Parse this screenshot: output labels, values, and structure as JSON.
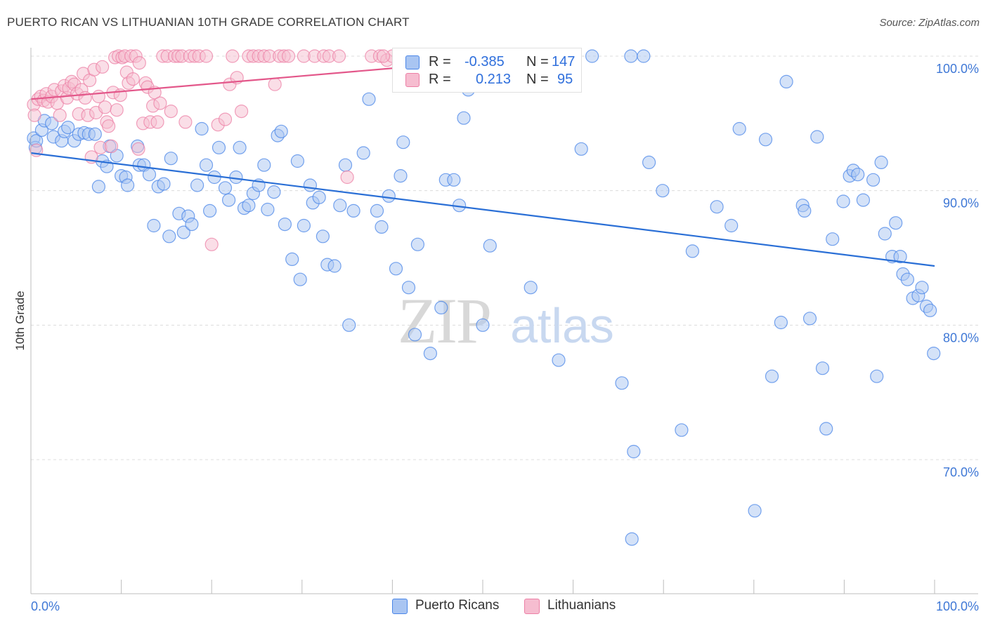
{
  "header": {
    "title": "PUERTO RICAN VS LITHUANIAN 10TH GRADE CORRELATION CHART",
    "source": "Source: ZipAtlas.com"
  },
  "watermark": {
    "zip": "ZIP",
    "atlas": "atlas"
  },
  "colors": {
    "blue": "#4a86e8",
    "blue_fill": "#a9c5f2",
    "blue_line": "#2a6fd6",
    "pink": "#ec80a6",
    "pink_fill": "#f6bdd0",
    "pink_line": "#e3578a",
    "tick_label": "#3f78d6",
    "grid": "#dcdcdc"
  },
  "legend": {
    "rows": [
      {
        "r_label": "R =",
        "r_value": "-0.385",
        "n_label": "N =",
        "n_value": "147"
      },
      {
        "r_label": "R =",
        "r_value": "0.213",
        "n_label": "N =",
        "n_value": "95"
      }
    ]
  },
  "bottom_legend": {
    "series1": "Puerto Ricans",
    "series2": "Lithuanians"
  },
  "chart_data": {
    "type": "scatter",
    "title": "PUERTO RICAN VS LITHUANIAN 10TH GRADE CORRELATION CHART",
    "xlabel": "",
    "ylabel": "10th Grade",
    "xlim": [
      0,
      100
    ],
    "ylim": [
      60,
      100
    ],
    "x_tick_labels": [
      "0.0%",
      "100.0%"
    ],
    "y_ticks": [
      70,
      80,
      90,
      100
    ],
    "y_tick_labels": [
      "70.0%",
      "80.0%",
      "90.0%",
      "100.0%"
    ],
    "grid": true,
    "legend_position": "top-center",
    "series": [
      {
        "name": "Puerto Ricans",
        "color": "#4a86e8",
        "r": -0.385,
        "n": 147,
        "trend": {
          "x": [
            0,
            100
          ],
          "y": [
            92.8,
            84.4
          ]
        },
        "points": [
          [
            0.3,
            93.9
          ],
          [
            0.5,
            93.2
          ],
          [
            0.6,
            93.7
          ],
          [
            1.2,
            94.5
          ],
          [
            1.5,
            95.2
          ],
          [
            2.3,
            95.0
          ],
          [
            2.5,
            94.0
          ],
          [
            3.4,
            93.7
          ],
          [
            3.7,
            94.4
          ],
          [
            4.1,
            94.7
          ],
          [
            4.8,
            93.7
          ],
          [
            5.3,
            94.2
          ],
          [
            5.9,
            94.3
          ],
          [
            6.4,
            94.2
          ],
          [
            7.1,
            94.2
          ],
          [
            7.5,
            90.3
          ],
          [
            7.9,
            92.2
          ],
          [
            8.4,
            91.8
          ],
          [
            8.7,
            93.3
          ],
          [
            9.5,
            92.6
          ],
          [
            10.0,
            91.1
          ],
          [
            10.5,
            91.0
          ],
          [
            10.7,
            90.4
          ],
          [
            11.8,
            93.3
          ],
          [
            12.0,
            91.9
          ],
          [
            12.5,
            91.9
          ],
          [
            13.1,
            91.2
          ],
          [
            13.6,
            87.4
          ],
          [
            14.1,
            90.3
          ],
          [
            14.7,
            90.5
          ],
          [
            15.3,
            86.6
          ],
          [
            15.5,
            92.4
          ],
          [
            16.4,
            88.3
          ],
          [
            16.9,
            86.9
          ],
          [
            17.4,
            88.1
          ],
          [
            17.8,
            87.5
          ],
          [
            18.4,
            90.4
          ],
          [
            18.9,
            94.6
          ],
          [
            19.4,
            91.9
          ],
          [
            19.8,
            88.5
          ],
          [
            20.3,
            91.0
          ],
          [
            20.8,
            93.2
          ],
          [
            21.5,
            90.2
          ],
          [
            21.9,
            89.3
          ],
          [
            22.7,
            91.0
          ],
          [
            23.1,
            93.2
          ],
          [
            23.6,
            88.7
          ],
          [
            24.1,
            88.9
          ],
          [
            24.6,
            89.8
          ],
          [
            25.2,
            90.4
          ],
          [
            25.8,
            91.9
          ],
          [
            26.2,
            88.6
          ],
          [
            26.9,
            89.9
          ],
          [
            27.3,
            94.1
          ],
          [
            27.7,
            94.4
          ],
          [
            28.1,
            87.5
          ],
          [
            28.9,
            84.9
          ],
          [
            29.5,
            92.2
          ],
          [
            29.8,
            83.4
          ],
          [
            30.2,
            87.4
          ],
          [
            30.9,
            90.4
          ],
          [
            31.2,
            89.1
          ],
          [
            31.9,
            89.5
          ],
          [
            32.3,
            86.6
          ],
          [
            32.8,
            84.5
          ],
          [
            33.6,
            84.4
          ],
          [
            34.2,
            88.9
          ],
          [
            34.8,
            91.9
          ],
          [
            35.2,
            80.0
          ],
          [
            35.7,
            88.5
          ],
          [
            36.8,
            92.8
          ],
          [
            37.4,
            96.8
          ],
          [
            38.3,
            88.5
          ],
          [
            38.8,
            87.3
          ],
          [
            39.6,
            89.6
          ],
          [
            40.4,
            84.2
          ],
          [
            40.9,
            91.1
          ],
          [
            41.2,
            93.6
          ],
          [
            41.8,
            82.8
          ],
          [
            42.5,
            79.3
          ],
          [
            42.8,
            86.0
          ],
          [
            44.2,
            77.9
          ],
          [
            45.4,
            81.3
          ],
          [
            45.9,
            90.8
          ],
          [
            46.8,
            90.8
          ],
          [
            47.4,
            88.9
          ],
          [
            47.9,
            95.4
          ],
          [
            48.4,
            97.5
          ],
          [
            49.1,
            100.0
          ],
          [
            50.0,
            80.0
          ],
          [
            50.8,
            85.9
          ],
          [
            52.0,
            99.9
          ],
          [
            53.0,
            100.0
          ],
          [
            54.0,
            100.0
          ],
          [
            55.3,
            82.8
          ],
          [
            55.8,
            100.0
          ],
          [
            58.4,
            77.4
          ],
          [
            59.0,
            100.0
          ],
          [
            59.7,
            100.0
          ],
          [
            60.9,
            93.1
          ],
          [
            62.1,
            100.0
          ],
          [
            65.4,
            75.7
          ],
          [
            66.4,
            100.0
          ],
          [
            66.5,
            64.1
          ],
          [
            66.7,
            70.6
          ],
          [
            67.8,
            100.0
          ],
          [
            68.4,
            92.1
          ],
          [
            69.9,
            90.0
          ],
          [
            72.0,
            72.2
          ],
          [
            73.2,
            85.5
          ],
          [
            75.9,
            88.8
          ],
          [
            77.5,
            87.4
          ],
          [
            78.4,
            94.6
          ],
          [
            80.1,
            66.2
          ],
          [
            81.3,
            93.8
          ],
          [
            82.0,
            76.2
          ],
          [
            83.0,
            80.2
          ],
          [
            83.6,
            98.1
          ],
          [
            85.4,
            88.9
          ],
          [
            85.6,
            88.5
          ],
          [
            86.2,
            80.5
          ],
          [
            87.0,
            94.0
          ],
          [
            87.6,
            76.8
          ],
          [
            88.0,
            72.3
          ],
          [
            88.7,
            86.4
          ],
          [
            89.9,
            89.2
          ],
          [
            90.6,
            91.1
          ],
          [
            91.0,
            91.5
          ],
          [
            91.5,
            91.2
          ],
          [
            92.1,
            89.3
          ],
          [
            93.2,
            90.8
          ],
          [
            93.6,
            76.2
          ],
          [
            94.1,
            92.1
          ],
          [
            94.5,
            86.8
          ],
          [
            95.3,
            85.1
          ],
          [
            95.7,
            87.6
          ],
          [
            96.2,
            85.1
          ],
          [
            96.5,
            83.8
          ],
          [
            97.0,
            83.4
          ],
          [
            97.6,
            82.0
          ],
          [
            98.2,
            82.2
          ],
          [
            98.6,
            82.8
          ],
          [
            99.1,
            81.4
          ],
          [
            99.5,
            81.1
          ],
          [
            99.9,
            77.9
          ]
        ]
      },
      {
        "name": "Lithuanians",
        "color": "#ec80a6",
        "r": 0.213,
        "n": 95,
        "trend": {
          "x": [
            0,
            40
          ],
          "y": [
            96.8,
            99.1
          ]
        },
        "points": [
          [
            0.3,
            96.4
          ],
          [
            0.4,
            95.6
          ],
          [
            0.6,
            93.0
          ],
          [
            0.8,
            96.8
          ],
          [
            1.1,
            97.0
          ],
          [
            1.4,
            96.7
          ],
          [
            1.7,
            97.2
          ],
          [
            1.9,
            96.6
          ],
          [
            2.3,
            97.0
          ],
          [
            2.6,
            97.5
          ],
          [
            2.9,
            96.5
          ],
          [
            3.2,
            95.6
          ],
          [
            3.4,
            97.4
          ],
          [
            3.7,
            97.8
          ],
          [
            4.0,
            96.9
          ],
          [
            4.2,
            97.6
          ],
          [
            4.5,
            98.1
          ],
          [
            4.8,
            97.9
          ],
          [
            5.1,
            97.2
          ],
          [
            5.3,
            95.7
          ],
          [
            5.6,
            97.5
          ],
          [
            5.8,
            98.7
          ],
          [
            6.0,
            96.9
          ],
          [
            6.3,
            95.6
          ],
          [
            6.5,
            98.2
          ],
          [
            6.7,
            92.5
          ],
          [
            7.0,
            99.0
          ],
          [
            7.2,
            95.8
          ],
          [
            7.5,
            97.0
          ],
          [
            7.7,
            93.2
          ],
          [
            7.9,
            99.2
          ],
          [
            8.2,
            96.2
          ],
          [
            8.4,
            95.1
          ],
          [
            8.6,
            94.8
          ],
          [
            8.9,
            93.3
          ],
          [
            9.1,
            97.3
          ],
          [
            9.3,
            99.9
          ],
          [
            9.5,
            96.0
          ],
          [
            9.7,
            100.0
          ],
          [
            9.9,
            97.1
          ],
          [
            10.1,
            99.9
          ],
          [
            10.4,
            100.0
          ],
          [
            10.6,
            98.8
          ],
          [
            10.8,
            98.0
          ],
          [
            11.1,
            100.0
          ],
          [
            11.3,
            98.3
          ],
          [
            11.6,
            100.0
          ],
          [
            11.9,
            93.1
          ],
          [
            12.0,
            99.5
          ],
          [
            12.4,
            95.0
          ],
          [
            12.7,
            98.0
          ],
          [
            12.9,
            97.7
          ],
          [
            13.2,
            95.1
          ],
          [
            13.5,
            96.3
          ],
          [
            13.7,
            97.3
          ],
          [
            14.0,
            95.1
          ],
          [
            14.3,
            96.5
          ],
          [
            14.6,
            100.0
          ],
          [
            15.1,
            100.0
          ],
          [
            15.5,
            95.9
          ],
          [
            15.9,
            100.0
          ],
          [
            16.3,
            100.0
          ],
          [
            16.7,
            100.0
          ],
          [
            17.1,
            95.1
          ],
          [
            17.6,
            100.0
          ],
          [
            18.1,
            100.0
          ],
          [
            18.6,
            100.0
          ],
          [
            19.4,
            100.0
          ],
          [
            20.0,
            86.0
          ],
          [
            20.7,
            94.9
          ],
          [
            21.5,
            95.3
          ],
          [
            22.0,
            97.9
          ],
          [
            22.3,
            100.0
          ],
          [
            22.8,
            98.4
          ],
          [
            23.3,
            95.9
          ],
          [
            24.1,
            100.0
          ],
          [
            24.6,
            100.0
          ],
          [
            25.2,
            100.0
          ],
          [
            25.8,
            100.0
          ],
          [
            26.4,
            100.0
          ],
          [
            27.0,
            97.9
          ],
          [
            27.5,
            100.0
          ],
          [
            28.0,
            100.0
          ],
          [
            28.5,
            100.0
          ],
          [
            30.2,
            100.0
          ],
          [
            31.4,
            100.0
          ],
          [
            32.4,
            100.0
          ],
          [
            33.0,
            100.0
          ],
          [
            34.1,
            100.0
          ],
          [
            35.0,
            91.0
          ],
          [
            37.7,
            100.0
          ],
          [
            38.6,
            100.0
          ],
          [
            39.4,
            99.7
          ],
          [
            40.0,
            100.0
          ],
          [
            39.0,
            100.0
          ]
        ]
      }
    ]
  }
}
